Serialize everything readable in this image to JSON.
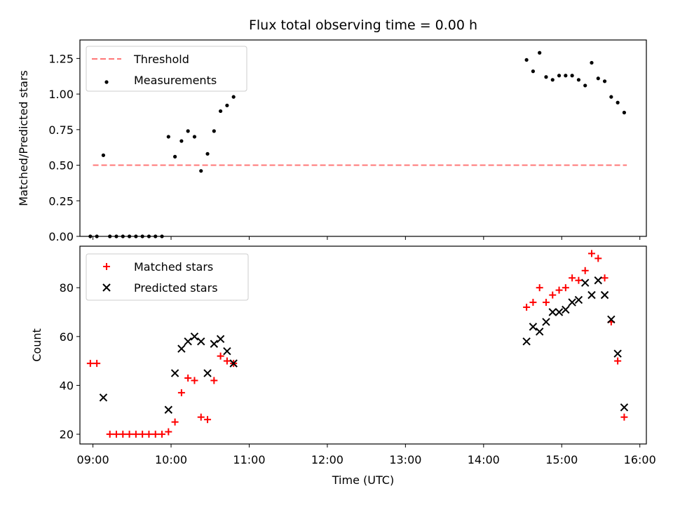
{
  "chart_data": [
    {
      "type": "line",
      "title": "Flux total observing time = 0.00 h",
      "xlabel": "",
      "ylabel": "Matched/Predicted stars",
      "xlim": [
        "08:50",
        "16:05"
      ],
      "ylim": [
        0,
        1.38
      ],
      "x_ticks": [
        "09:00",
        "10:00",
        "11:00",
        "12:00",
        "13:00",
        "14:00",
        "15:00",
        "16:00"
      ],
      "y_ticks": [
        "0.00",
        "0.25",
        "0.50",
        "0.75",
        "1.00",
        "1.25"
      ],
      "legend_position": "upper left",
      "series": [
        {
          "name": "Threshold",
          "kind": "dashed-line",
          "color": "#ff7777",
          "x": [
            "09:00",
            "15:50"
          ],
          "y": [
            0.5,
            0.5
          ]
        },
        {
          "name": "Measurements",
          "kind": "scatter-dot",
          "color": "#000000",
          "x": [
            "08:58",
            "09:03",
            "09:08",
            "09:13",
            "09:18",
            "09:23",
            "09:28",
            "09:33",
            "09:38",
            "09:43",
            "09:48",
            "09:53",
            "09:58",
            "10:03",
            "10:08",
            "10:13",
            "10:18",
            "10:23",
            "10:28",
            "10:33",
            "10:38",
            "10:43",
            "10:48",
            "14:33",
            "14:38",
            "14:43",
            "14:48",
            "14:53",
            "14:58",
            "15:03",
            "15:08",
            "15:13",
            "15:18",
            "15:23",
            "15:28",
            "15:33",
            "15:38",
            "15:43",
            "15:48"
          ],
          "y": [
            0.0,
            0.0,
            0.57,
            0.0,
            0.0,
            0.0,
            0.0,
            0.0,
            0.0,
            0.0,
            0.0,
            0.0,
            0.7,
            0.56,
            0.67,
            0.74,
            0.7,
            0.46,
            0.58,
            0.74,
            0.88,
            0.92,
            0.98,
            1.24,
            1.16,
            1.29,
            1.12,
            1.1,
            1.13,
            1.13,
            1.13,
            1.1,
            1.06,
            1.22,
            1.11,
            1.09,
            0.98,
            0.94,
            0.87
          ]
        }
      ]
    },
    {
      "type": "scatter",
      "title": "",
      "xlabel": "Time (UTC)",
      "ylabel": "Count",
      "xlim": [
        "08:50",
        "16:05"
      ],
      "ylim": [
        16,
        97
      ],
      "x_ticks": [
        "09:00",
        "10:00",
        "11:00",
        "12:00",
        "13:00",
        "14:00",
        "15:00",
        "16:00"
      ],
      "y_ticks": [
        "20",
        "40",
        "60",
        "80"
      ],
      "legend_position": "upper left",
      "series": [
        {
          "name": "Matched stars",
          "marker": "plus",
          "color": "#ff0000",
          "x": [
            "08:58",
            "09:03",
            "09:13",
            "09:18",
            "09:23",
            "09:28",
            "09:33",
            "09:38",
            "09:43",
            "09:48",
            "09:53",
            "09:58",
            "10:03",
            "10:08",
            "10:13",
            "10:18",
            "10:23",
            "10:28",
            "10:33",
            "10:38",
            "10:43",
            "10:48",
            "14:33",
            "14:38",
            "14:43",
            "14:48",
            "14:53",
            "14:58",
            "15:03",
            "15:08",
            "15:13",
            "15:18",
            "15:23",
            "15:28",
            "15:33",
            "15:38",
            "15:43",
            "15:48"
          ],
          "y": [
            49,
            49,
            20,
            20,
            20,
            20,
            20,
            20,
            20,
            20,
            20,
            21,
            25,
            37,
            43,
            42,
            27,
            26,
            42,
            52,
            50,
            49,
            72,
            74,
            80,
            74,
            77,
            79,
            80,
            84,
            83,
            87,
            94,
            92,
            84,
            66,
            50,
            27
          ]
        },
        {
          "name": "Predicted stars",
          "marker": "x",
          "color": "#000000",
          "x": [
            "09:08",
            "09:58",
            "10:03",
            "10:08",
            "10:13",
            "10:18",
            "10:23",
            "10:28",
            "10:33",
            "10:38",
            "10:43",
            "10:48",
            "14:33",
            "14:38",
            "14:43",
            "14:48",
            "14:53",
            "14:58",
            "15:03",
            "15:08",
            "15:13",
            "15:18",
            "15:23",
            "15:28",
            "15:33",
            "15:38",
            "15:43",
            "15:48"
          ],
          "y": [
            35,
            30,
            45,
            55,
            58,
            60,
            58,
            45,
            57,
            59,
            54,
            49,
            58,
            64,
            62,
            66,
            70,
            70,
            71,
            74,
            75,
            82,
            77,
            83,
            77,
            67,
            53,
            31
          ]
        }
      ]
    }
  ]
}
